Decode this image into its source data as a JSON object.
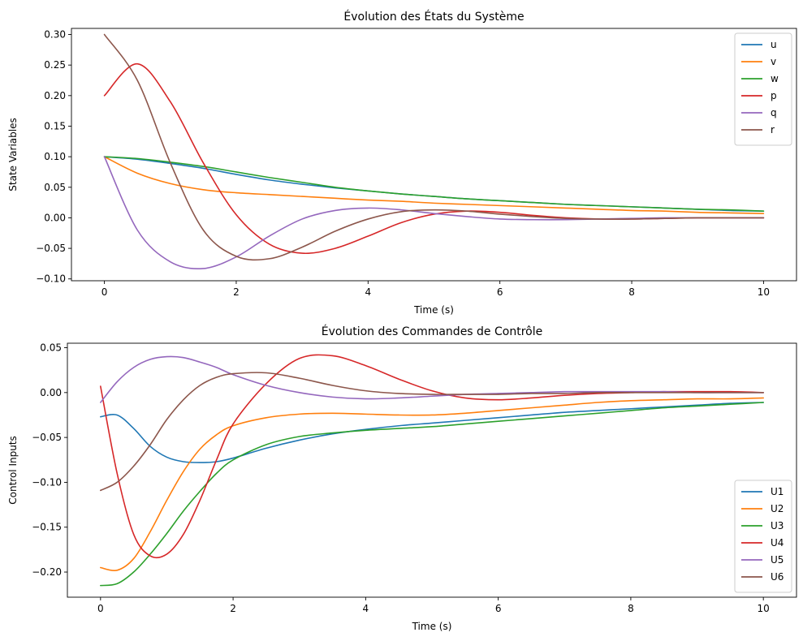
{
  "chart_data": [
    {
      "type": "line",
      "title": "Évolution des États du Système",
      "xlabel": "Time (s)",
      "ylabel": "State Variables",
      "xlim": [
        -0.5,
        10.5
      ],
      "ylim": [
        -0.103,
        0.31
      ],
      "xticks": [
        0,
        2,
        4,
        6,
        8,
        10
      ],
      "yticks": [
        -0.1,
        -0.05,
        0.0,
        0.05,
        0.1,
        0.15,
        0.2,
        0.25,
        0.3
      ],
      "ytick_labels": [
        "−0.10",
        "−0.05",
        "0.00",
        "0.05",
        "0.10",
        "0.15",
        "0.20",
        "0.25",
        "0.30"
      ],
      "grid": false,
      "legend_position": "upper right",
      "x": [
        0,
        0.5,
        1,
        1.5,
        2,
        2.5,
        3,
        3.5,
        4,
        4.5,
        5,
        5.5,
        6,
        6.5,
        7,
        7.5,
        8,
        8.5,
        9,
        9.5,
        10
      ],
      "series": [
        {
          "name": "u",
          "color": "#1f77b4",
          "values": [
            0.1,
            0.096,
            0.089,
            0.081,
            0.071,
            0.062,
            0.055,
            0.049,
            0.044,
            0.039,
            0.035,
            0.031,
            0.028,
            0.025,
            0.022,
            0.02,
            0.018,
            0.016,
            0.014,
            0.012,
            0.011
          ]
        },
        {
          "name": "v",
          "color": "#ff7f0e",
          "values": [
            0.1,
            0.073,
            0.056,
            0.046,
            0.041,
            0.038,
            0.035,
            0.032,
            0.029,
            0.027,
            0.024,
            0.022,
            0.02,
            0.018,
            0.016,
            0.014,
            0.012,
            0.011,
            0.009,
            0.008,
            0.007
          ]
        },
        {
          "name": "w",
          "color": "#2ca02c",
          "values": [
            0.1,
            0.097,
            0.091,
            0.084,
            0.075,
            0.066,
            0.058,
            0.05,
            0.044,
            0.039,
            0.035,
            0.031,
            0.028,
            0.025,
            0.022,
            0.02,
            0.018,
            0.016,
            0.014,
            0.013,
            0.011
          ]
        },
        {
          "name": "p",
          "color": "#d62728",
          "values": [
            0.2,
            0.252,
            0.19,
            0.09,
            0.005,
            -0.043,
            -0.058,
            -0.05,
            -0.03,
            -0.008,
            0.006,
            0.011,
            0.009,
            0.004,
            0.0,
            -0.002,
            -0.002,
            -0.001,
            0.0,
            0.0,
            0.0
          ]
        },
        {
          "name": "q",
          "color": "#9467bd",
          "values": [
            0.1,
            -0.02,
            -0.072,
            -0.083,
            -0.064,
            -0.03,
            -0.002,
            0.012,
            0.016,
            0.013,
            0.007,
            0.002,
            -0.002,
            -0.003,
            -0.003,
            -0.002,
            -0.001,
            0.0,
            0.0,
            0.0,
            0.0
          ]
        },
        {
          "name": "r",
          "color": "#8c564b",
          "values": [
            0.3,
            0.225,
            0.09,
            -0.02,
            -0.063,
            -0.067,
            -0.048,
            -0.022,
            -0.002,
            0.01,
            0.013,
            0.011,
            0.006,
            0.002,
            -0.001,
            -0.002,
            -0.002,
            -0.001,
            0.0,
            0.0,
            0.0
          ]
        }
      ]
    },
    {
      "type": "line",
      "title": "Évolution des Commandes de Contrôle",
      "xlabel": "Time (s)",
      "ylabel": "Control Inputs",
      "xlim": [
        -0.5,
        10.5
      ],
      "ylim": [
        -0.228,
        0.055
      ],
      "xticks": [
        0,
        2,
        4,
        6,
        8,
        10
      ],
      "yticks": [
        -0.2,
        -0.15,
        -0.1,
        -0.05,
        0.0,
        0.05
      ],
      "ytick_labels": [
        "−0.20",
        "−0.15",
        "−0.10",
        "−0.05",
        "0.00",
        "0.05"
      ],
      "grid": false,
      "legend_position": "lower right",
      "x": [
        0,
        0.25,
        0.5,
        0.75,
        1,
        1.25,
        1.5,
        1.75,
        2,
        2.5,
        3,
        3.5,
        4,
        4.5,
        5,
        5.5,
        6,
        6.5,
        7,
        7.5,
        8,
        8.5,
        9,
        9.5,
        10
      ],
      "series": [
        {
          "name": "U1",
          "color": "#1f77b4",
          "values": [
            -0.027,
            -0.025,
            -0.04,
            -0.06,
            -0.072,
            -0.077,
            -0.078,
            -0.077,
            -0.073,
            -0.062,
            -0.053,
            -0.046,
            -0.041,
            -0.037,
            -0.034,
            -0.031,
            -0.028,
            -0.025,
            -0.022,
            -0.02,
            -0.018,
            -0.016,
            -0.014,
            -0.012,
            -0.011
          ]
        },
        {
          "name": "U2",
          "color": "#ff7f0e",
          "values": [
            -0.195,
            -0.198,
            -0.185,
            -0.155,
            -0.12,
            -0.088,
            -0.063,
            -0.047,
            -0.037,
            -0.028,
            -0.024,
            -0.023,
            -0.024,
            -0.025,
            -0.025,
            -0.023,
            -0.02,
            -0.017,
            -0.014,
            -0.011,
            -0.009,
            -0.008,
            -0.007,
            -0.007,
            -0.006
          ]
        },
        {
          "name": "U3",
          "color": "#2ca02c",
          "values": [
            -0.215,
            -0.213,
            -0.2,
            -0.18,
            -0.157,
            -0.132,
            -0.11,
            -0.09,
            -0.075,
            -0.058,
            -0.049,
            -0.045,
            -0.042,
            -0.04,
            -0.038,
            -0.035,
            -0.032,
            -0.029,
            -0.026,
            -0.023,
            -0.02,
            -0.017,
            -0.015,
            -0.013,
            -0.011
          ]
        },
        {
          "name": "U4",
          "color": "#d62728",
          "values": [
            0.007,
            -0.09,
            -0.158,
            -0.182,
            -0.18,
            -0.158,
            -0.12,
            -0.075,
            -0.035,
            0.01,
            0.038,
            0.041,
            0.03,
            0.015,
            0.002,
            -0.006,
            -0.008,
            -0.006,
            -0.003,
            -0.001,
            0.0,
            0.001,
            0.001,
            0.001,
            0.0
          ]
        },
        {
          "name": "U5",
          "color": "#9467bd",
          "values": [
            -0.011,
            0.012,
            0.028,
            0.037,
            0.04,
            0.039,
            0.034,
            0.028,
            0.02,
            0.008,
            0.0,
            -0.005,
            -0.007,
            -0.006,
            -0.004,
            -0.002,
            -0.001,
            0.0,
            0.001,
            0.001,
            0.001,
            0.001,
            0.0,
            0.0,
            0.0
          ]
        },
        {
          "name": "U6",
          "color": "#8c564b",
          "values": [
            -0.109,
            -0.1,
            -0.082,
            -0.058,
            -0.03,
            -0.008,
            0.008,
            0.017,
            0.021,
            0.022,
            0.016,
            0.008,
            0.002,
            -0.001,
            -0.002,
            -0.002,
            -0.002,
            -0.001,
            -0.001,
            0.0,
            0.0,
            0.0,
            0.0,
            0.0,
            0.0
          ]
        }
      ]
    }
  ]
}
